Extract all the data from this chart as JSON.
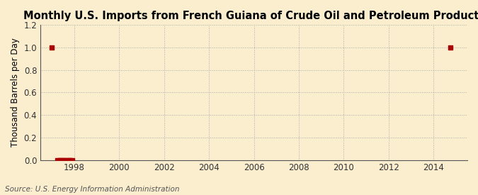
{
  "title": "Monthly U.S. Imports from French Guiana of Crude Oil and Petroleum Products",
  "ylabel": "Thousand Barrels per Day",
  "source": "Source: U.S. Energy Information Administration",
  "background_color": "#faeecf",
  "plot_bg_color": "#faeecf",
  "marker_color": "#aa0000",
  "scatter_x": [
    1997.0,
    1997.25,
    1997.33,
    1997.42,
    1997.5,
    1997.58,
    1997.67,
    1997.75,
    1997.83,
    1997.92,
    2014.75
  ],
  "scatter_y": [
    1.0,
    0.0,
    0.0,
    0.0,
    0.0,
    0.0,
    0.0,
    0.0,
    0.0,
    0.0,
    1.0
  ],
  "xlim": [
    1996.5,
    2015.5
  ],
  "ylim": [
    0.0,
    1.2
  ],
  "xticks": [
    1998,
    2000,
    2002,
    2004,
    2006,
    2008,
    2010,
    2012,
    2014
  ],
  "yticks": [
    0.0,
    0.2,
    0.4,
    0.6,
    0.8,
    1.0,
    1.2
  ],
  "grid_color": "#aaaaaa",
  "grid_style": ":",
  "marker": "s",
  "marker_size": 4,
  "title_fontsize": 10.5,
  "label_fontsize": 8.5,
  "tick_fontsize": 8.5,
  "source_fontsize": 7.5
}
